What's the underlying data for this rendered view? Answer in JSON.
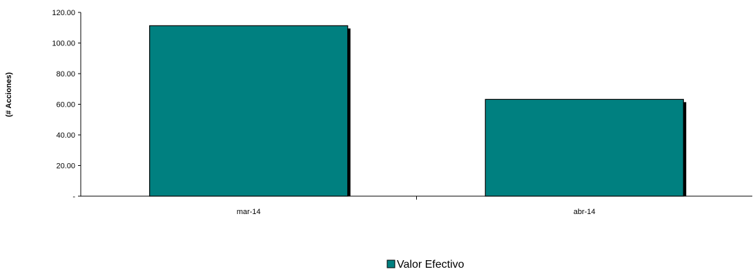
{
  "chart_data": {
    "type": "bar",
    "title": "",
    "xlabel": "",
    "ylabel": "(# Acciones)",
    "categories": [
      "mar-14",
      "abr-14"
    ],
    "series": [
      {
        "name": "Valor Efectivo",
        "values": [
          111.3,
          63.2
        ],
        "color": "#008080"
      }
    ],
    "ylim": [
      0,
      120
    ],
    "yticks": [
      0,
      20,
      40,
      60,
      80,
      100,
      120
    ],
    "ytick_labels": [
      "-",
      "20.00",
      "40.00",
      "60.00",
      "80.00",
      "100.00",
      "120.00"
    ],
    "grid": false,
    "legend_position": "bottom"
  }
}
